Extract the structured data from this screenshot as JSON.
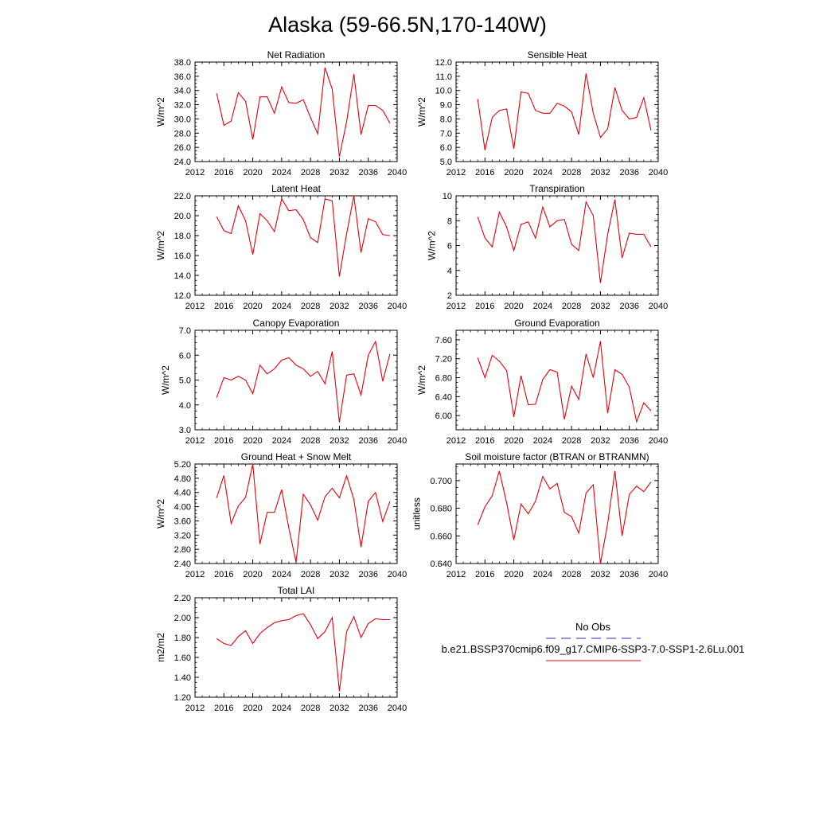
{
  "title": "Alaska (59-66.5N,170-140W)",
  "colors": {
    "model_line": "#e8000b",
    "obs_line": "#2b2bbf"
  },
  "legend": {
    "obs_label": "No Obs",
    "model_label": "b.e21.BSSP370cmip6.f09_g17.CMIP6-SSP3-7.0-SSP1-2.6Lu.001"
  },
  "chart_data": [
    {
      "type": "line",
      "title": "Net Radiation",
      "ylabel": "W/m^2",
      "xlim": [
        2012,
        2040
      ],
      "ylim": [
        24,
        38
      ],
      "x_ticks": [
        2012,
        2016,
        2020,
        2024,
        2028,
        2032,
        2036,
        2040
      ],
      "y_ticks": [
        "24.0",
        "26.0",
        "28.0",
        "30.0",
        "32.0",
        "34.0",
        "36.0",
        "38.0"
      ],
      "x": [
        2015,
        2016,
        2017,
        2018,
        2019,
        2020,
        2021,
        2022,
        2023,
        2024,
        2025,
        2026,
        2027,
        2028,
        2029,
        2030,
        2031,
        2032,
        2033,
        2034,
        2035,
        2036,
        2037,
        2038,
        2039
      ],
      "values": [
        33.6,
        29.1,
        29.7,
        33.7,
        32.5,
        27.1,
        33.1,
        33.1,
        30.8,
        34.5,
        32.3,
        32.2,
        32.7,
        30.2,
        27.9,
        37.2,
        34.2,
        24.7,
        29.6,
        36.3,
        27.8,
        31.9,
        31.9,
        31.2,
        29.4
      ]
    },
    {
      "type": "line",
      "title": "Sensible Heat",
      "ylabel": "W/m^2",
      "xlim": [
        2012,
        2040
      ],
      "ylim": [
        5,
        12
      ],
      "x_ticks": [
        2012,
        2016,
        2020,
        2024,
        2028,
        2032,
        2036,
        2040
      ],
      "y_ticks": [
        "5.0",
        "6.0",
        "7.0",
        "8.0",
        "9.0",
        "10.0",
        "11.0",
        "12.0"
      ],
      "x": [
        2015,
        2016,
        2017,
        2018,
        2019,
        2020,
        2021,
        2022,
        2023,
        2024,
        2025,
        2026,
        2027,
        2028,
        2029,
        2030,
        2031,
        2032,
        2033,
        2034,
        2035,
        2036,
        2037,
        2038,
        2039
      ],
      "values": [
        9.4,
        5.8,
        8.1,
        8.6,
        8.7,
        5.9,
        9.9,
        9.8,
        8.6,
        8.4,
        8.4,
        9.1,
        8.9,
        8.5,
        6.9,
        11.2,
        8.4,
        6.7,
        7.3,
        10.2,
        8.6,
        8.0,
        8.1,
        9.5,
        7.2
      ]
    },
    {
      "type": "line",
      "title": "Latent Heat",
      "ylabel": "W/m^2",
      "xlim": [
        2012,
        2040
      ],
      "ylim": [
        12,
        22
      ],
      "x_ticks": [
        2012,
        2016,
        2020,
        2024,
        2028,
        2032,
        2036,
        2040
      ],
      "y_ticks": [
        "12.0",
        "14.0",
        "16.0",
        "18.0",
        "20.0",
        "22.0"
      ],
      "x": [
        2015,
        2016,
        2017,
        2018,
        2019,
        2020,
        2021,
        2022,
        2023,
        2024,
        2025,
        2026,
        2027,
        2028,
        2029,
        2030,
        2031,
        2032,
        2033,
        2034,
        2035,
        2036,
        2037,
        2038,
        2039
      ],
      "values": [
        19.9,
        18.5,
        18.2,
        21.0,
        19.5,
        16.1,
        20.2,
        19.5,
        18.4,
        21.7,
        20.5,
        20.6,
        19.6,
        17.8,
        17.3,
        21.7,
        21.5,
        13.9,
        18.2,
        22.0,
        16.3,
        19.7,
        19.4,
        18.1,
        18.0
      ]
    },
    {
      "type": "line",
      "title": "Transpiration",
      "ylabel": "W/m^2",
      "xlim": [
        2012,
        2040
      ],
      "ylim": [
        2,
        10
      ],
      "x_ticks": [
        2012,
        2016,
        2020,
        2024,
        2028,
        2032,
        2036,
        2040
      ],
      "y_ticks": [
        "2",
        "4",
        "6",
        "8",
        "10"
      ],
      "x": [
        2015,
        2016,
        2017,
        2018,
        2019,
        2020,
        2021,
        2022,
        2023,
        2024,
        2025,
        2026,
        2027,
        2028,
        2029,
        2030,
        2031,
        2032,
        2033,
        2034,
        2035,
        2036,
        2037,
        2038,
        2039
      ],
      "values": [
        8.3,
        6.6,
        5.9,
        8.7,
        7.5,
        5.6,
        7.7,
        7.9,
        6.6,
        9.1,
        7.5,
        8.0,
        8.1,
        6.1,
        5.6,
        9.5,
        8.4,
        3.0,
        6.9,
        9.7,
        5.0,
        7.0,
        6.9,
        6.9,
        5.9
      ]
    },
    {
      "type": "line",
      "title": "Canopy Evaporation",
      "ylabel": "W/m^2",
      "xlim": [
        2012,
        2040
      ],
      "ylim": [
        3,
        7
      ],
      "x_ticks": [
        2012,
        2016,
        2020,
        2024,
        2028,
        2032,
        2036,
        2040
      ],
      "y_ticks": [
        "3.0",
        "4.0",
        "5.0",
        "6.0",
        "7.0"
      ],
      "x": [
        2015,
        2016,
        2017,
        2018,
        2019,
        2020,
        2021,
        2022,
        2023,
        2024,
        2025,
        2026,
        2027,
        2028,
        2029,
        2030,
        2031,
        2032,
        2033,
        2034,
        2035,
        2036,
        2037,
        2038,
        2039
      ],
      "values": [
        4.3,
        5.1,
        5.0,
        5.15,
        5.0,
        4.45,
        5.6,
        5.25,
        5.45,
        5.8,
        5.9,
        5.6,
        5.45,
        5.15,
        5.35,
        4.85,
        6.15,
        3.3,
        5.2,
        5.25,
        4.4,
        6.0,
        6.55,
        4.95,
        6.05
      ]
    },
    {
      "type": "line",
      "title": "Ground Evaporation",
      "ylabel": "W/m^2",
      "xlim": [
        2012,
        2040
      ],
      "ylim": [
        5.7,
        7.8
      ],
      "x_ticks": [
        2012,
        2016,
        2020,
        2024,
        2028,
        2032,
        2036,
        2040
      ],
      "y_ticks": [
        "6.00",
        "6.40",
        "6.80",
        "7.20",
        "7.60"
      ],
      "x": [
        2015,
        2016,
        2017,
        2018,
        2019,
        2020,
        2021,
        2022,
        2023,
        2024,
        2025,
        2026,
        2027,
        2028,
        2029,
        2030,
        2031,
        2032,
        2033,
        2034,
        2035,
        2036,
        2037,
        2038,
        2039
      ],
      "values": [
        7.22,
        6.8,
        7.27,
        7.15,
        6.95,
        5.97,
        6.84,
        6.23,
        6.24,
        6.76,
        6.97,
        6.92,
        5.92,
        6.62,
        6.34,
        7.3,
        6.8,
        7.57,
        6.05,
        6.97,
        6.87,
        6.6,
        5.87,
        6.27,
        6.1
      ]
    },
    {
      "type": "line",
      "title": "Ground Heat + Snow Melt",
      "ylabel": "W/m^2",
      "xlim": [
        2012,
        2040
      ],
      "ylim": [
        2.4,
        5.2
      ],
      "x_ticks": [
        2012,
        2016,
        2020,
        2024,
        2028,
        2032,
        2036,
        2040
      ],
      "y_ticks": [
        "2.40",
        "2.80",
        "3.20",
        "3.60",
        "4.00",
        "4.40",
        "4.80",
        "5.20"
      ],
      "x": [
        2015,
        2016,
        2017,
        2018,
        2019,
        2020,
        2021,
        2022,
        2023,
        2024,
        2025,
        2026,
        2027,
        2028,
        2029,
        2030,
        2031,
        2032,
        2033,
        2034,
        2035,
        2036,
        2037,
        2038,
        2039
      ],
      "values": [
        4.25,
        4.88,
        3.53,
        4.02,
        4.26,
        5.2,
        2.95,
        3.84,
        3.84,
        4.48,
        3.4,
        2.43,
        4.35,
        4.05,
        3.62,
        4.28,
        4.52,
        4.25,
        4.87,
        4.2,
        2.86,
        4.15,
        4.4,
        3.58,
        4.15
      ]
    },
    {
      "type": "line",
      "title": "Soil moisture factor (BTRAN or BTRANMN)",
      "ylabel": "unitless",
      "xlim": [
        2012,
        2040
      ],
      "ylim": [
        0.64,
        0.712
      ],
      "x_ticks": [
        2012,
        2016,
        2020,
        2024,
        2028,
        2032,
        2036,
        2040
      ],
      "y_ticks": [
        "0.640",
        "0.660",
        "0.680",
        "0.700"
      ],
      "x": [
        2015,
        2016,
        2017,
        2018,
        2019,
        2020,
        2021,
        2022,
        2023,
        2024,
        2025,
        2026,
        2027,
        2028,
        2029,
        2030,
        2031,
        2032,
        2033,
        2034,
        2035,
        2036,
        2037,
        2038,
        2039
      ],
      "values": [
        0.668,
        0.681,
        0.689,
        0.707,
        0.684,
        0.657,
        0.683,
        0.676,
        0.685,
        0.703,
        0.694,
        0.698,
        0.677,
        0.674,
        0.662,
        0.691,
        0.697,
        0.64,
        0.669,
        0.707,
        0.66,
        0.69,
        0.696,
        0.692,
        0.699
      ]
    },
    {
      "type": "line",
      "title": "Total LAI",
      "ylabel": "m2/m2",
      "xlim": [
        2012,
        2040
      ],
      "ylim": [
        1.2,
        2.2
      ],
      "x_ticks": [
        2012,
        2016,
        2020,
        2024,
        2028,
        2032,
        2036,
        2040
      ],
      "y_ticks": [
        "1.20",
        "1.40",
        "1.60",
        "1.80",
        "2.00",
        "2.20"
      ],
      "x": [
        2015,
        2016,
        2017,
        2018,
        2019,
        2020,
        2021,
        2022,
        2023,
        2024,
        2025,
        2026,
        2027,
        2028,
        2029,
        2030,
        2031,
        2032,
        2033,
        2034,
        2035,
        2036,
        2037,
        2038,
        2039
      ],
      "values": [
        1.79,
        1.74,
        1.72,
        1.81,
        1.87,
        1.74,
        1.84,
        1.9,
        1.95,
        1.97,
        1.98,
        2.02,
        2.04,
        1.93,
        1.79,
        1.86,
        2.0,
        1.26,
        1.86,
        2.01,
        1.8,
        1.94,
        1.99,
        1.98,
        1.98
      ]
    }
  ]
}
